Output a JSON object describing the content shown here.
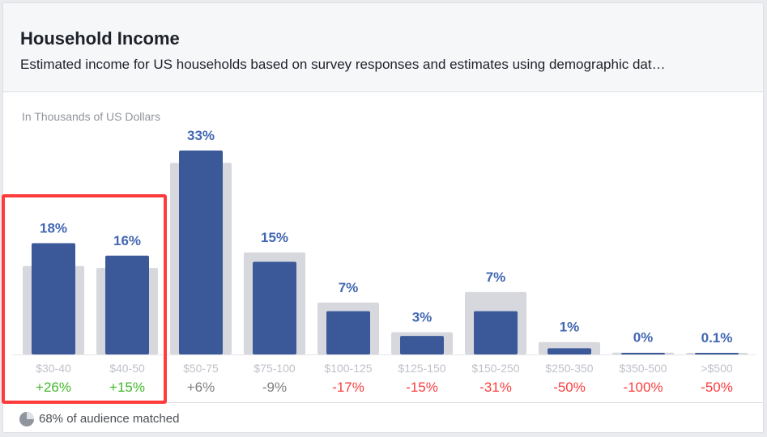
{
  "header": {
    "title": "Household Income",
    "subtitle": "Estimated income for US households based on survey responses and estimates using demographic dat…"
  },
  "chart_data": {
    "type": "bar",
    "unit_label": "In Thousands of US Dollars",
    "categories": [
      "$30-40",
      "$40-50",
      "$50-75",
      "$75-100",
      "$100-125",
      "$125-150",
      "$150-250",
      "$250-350",
      "$350-500",
      ">$500"
    ],
    "series": [
      {
        "values": [
          18,
          16,
          33,
          15,
          7,
          3,
          7,
          1,
          0,
          0.1
        ],
        "color": "#3b5998"
      },
      {
        "values": [
          14.3,
          14.0,
          31.0,
          16.5,
          8.4,
          3.6,
          10.1,
          2.0,
          0.3,
          0.2
        ],
        "color": "#d6d8de"
      }
    ],
    "value_labels": [
      "18%",
      "16%",
      "33%",
      "15%",
      "7%",
      "3%",
      "7%",
      "1%",
      "0%",
      "0.1%"
    ],
    "delta_labels": [
      "+26%",
      "+15%",
      "+6%",
      "-9%",
      "-17%",
      "-15%",
      "-31%",
      "-50%",
      "-100%",
      "-50%"
    ],
    "delta_colors": [
      "#42b72a",
      "#42b72a",
      "#7f7f7f",
      "#7f7f7f",
      "#fa3e3e",
      "#fa3e3e",
      "#fa3e3e",
      "#fa3e3e",
      "#fa3e3e",
      "#fa3e3e"
    ],
    "ylim": [
      0,
      33
    ],
    "grid": false,
    "highlighted_categories": [
      "$30-40",
      "$40-50"
    ]
  },
  "footer": {
    "text": "68% of audience matched",
    "icon": "pie-chart-icon"
  },
  "colors": {
    "primary_bar": "#3b5998",
    "comparison_bar": "#d6d8de",
    "value_label": "#4267b2",
    "highlight": "#ff3b3b"
  }
}
